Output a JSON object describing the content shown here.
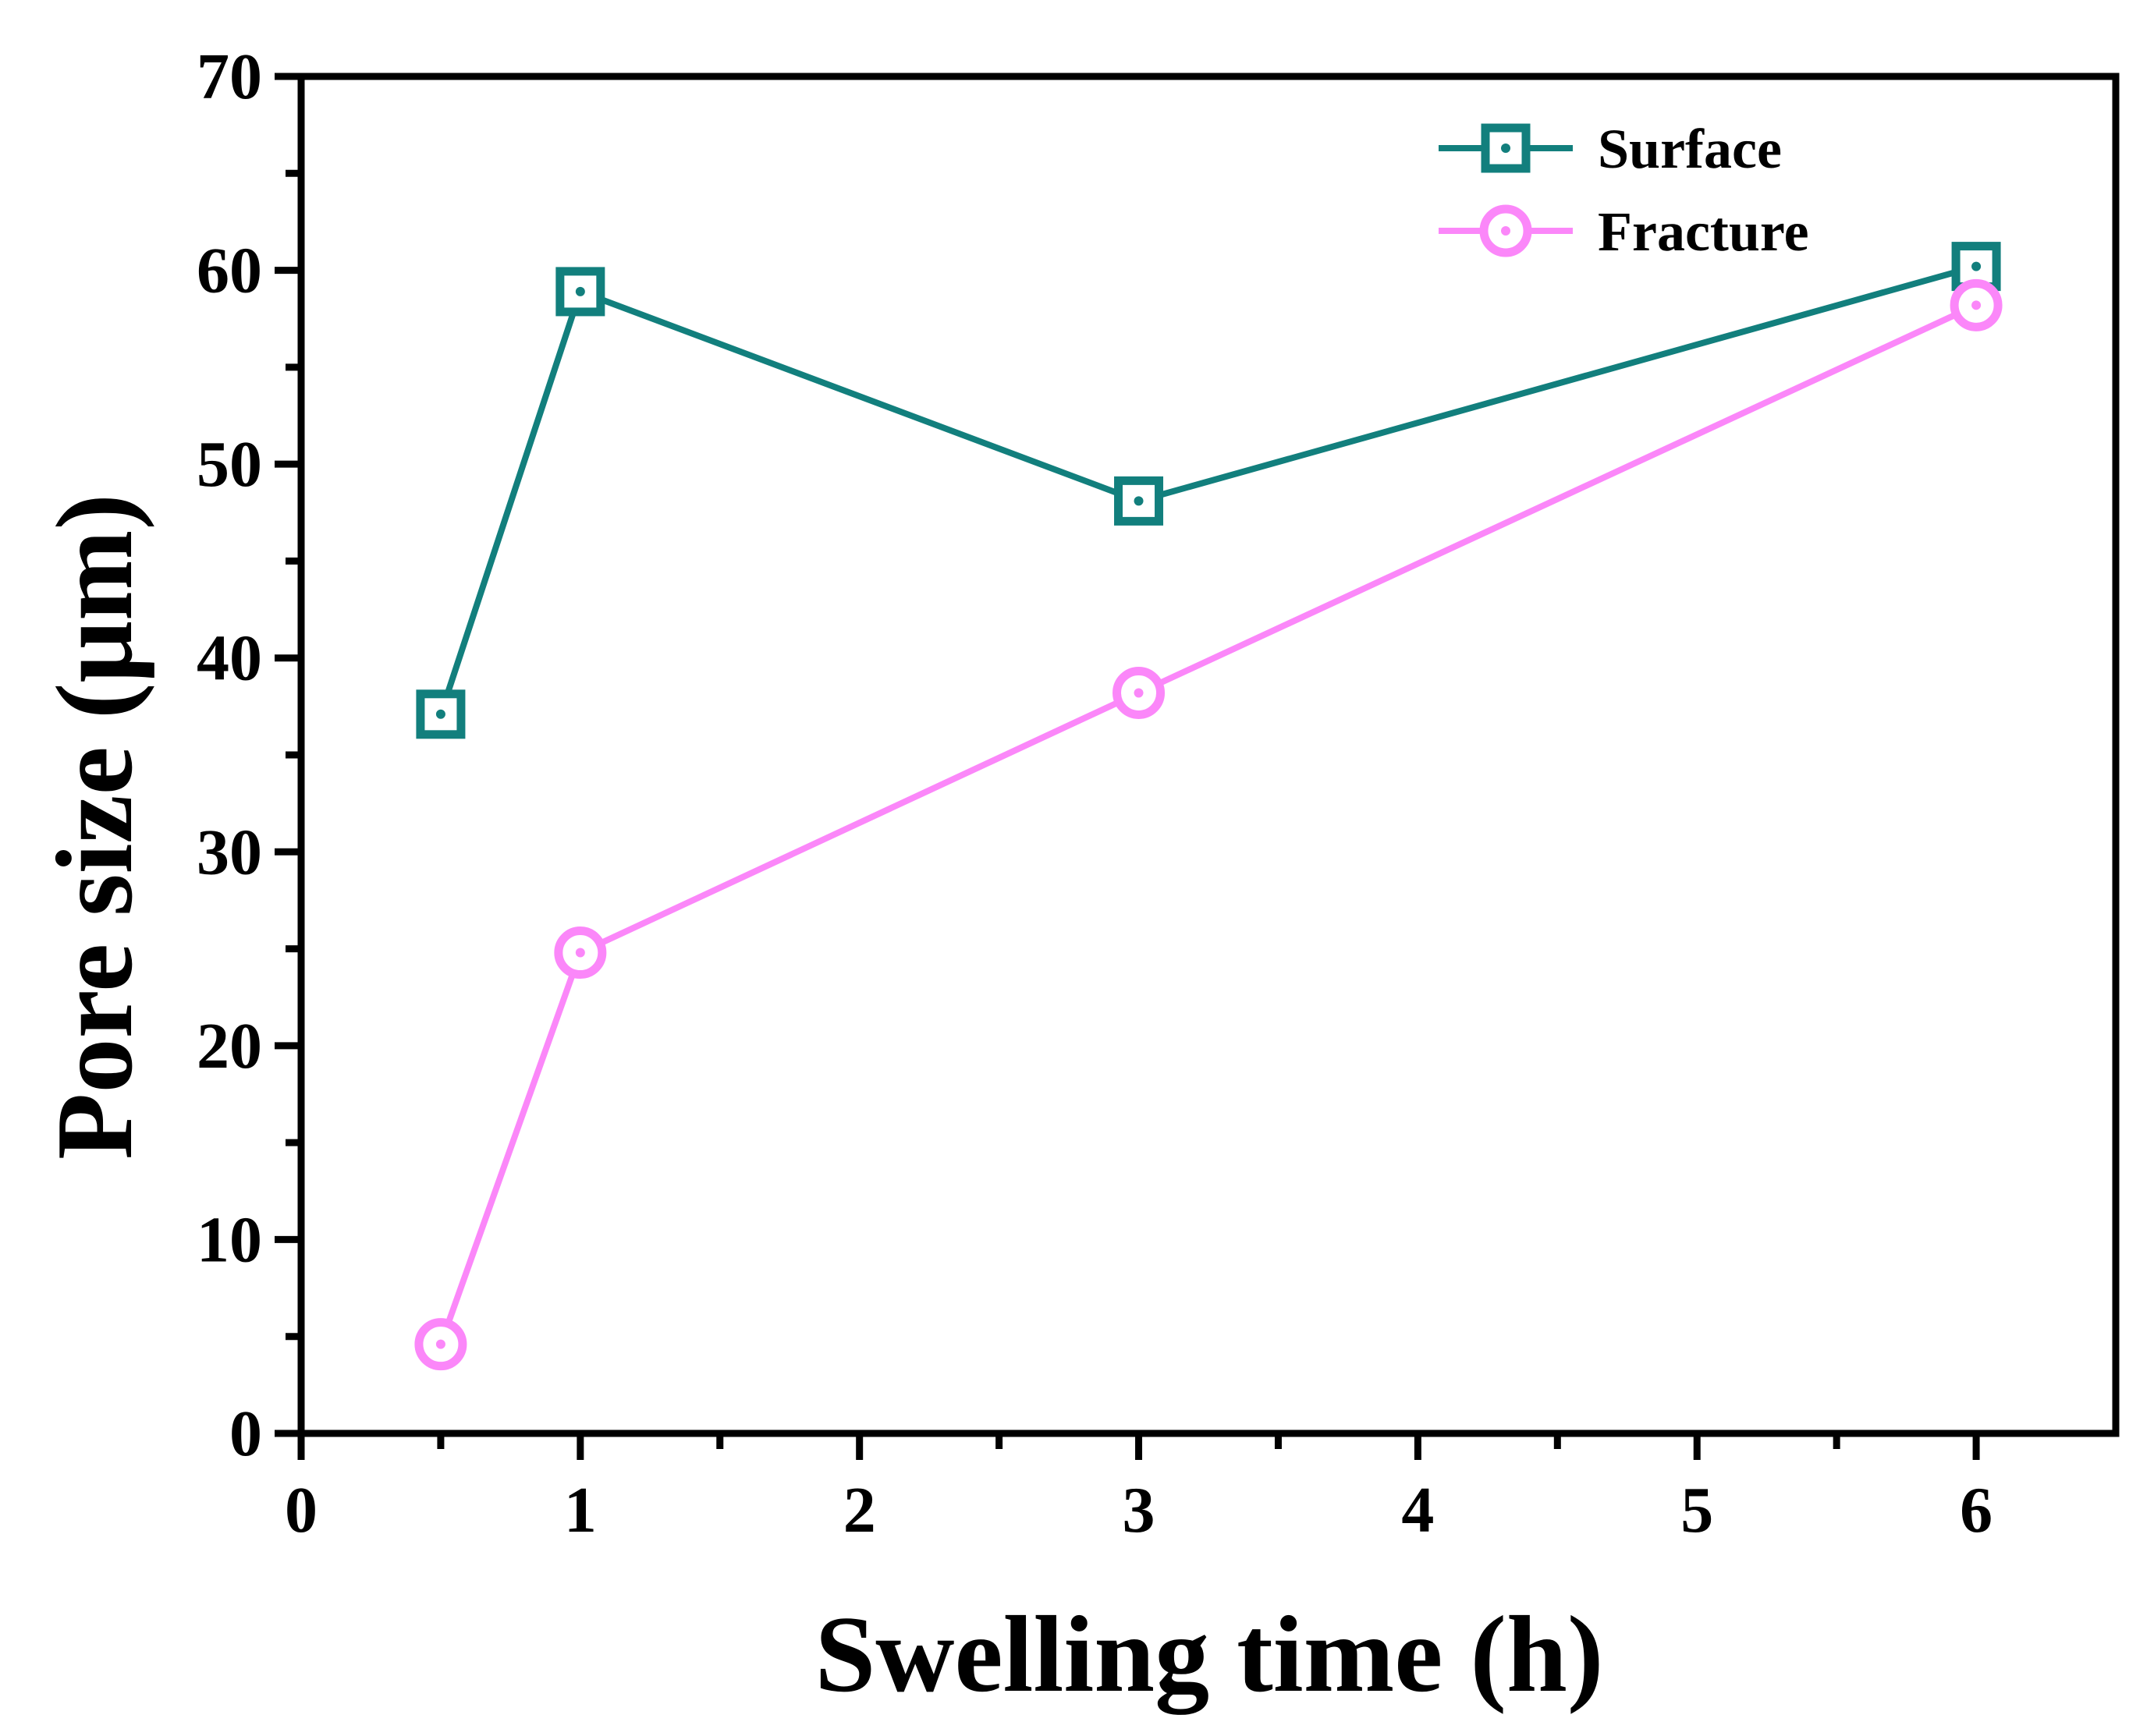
{
  "chart_data": {
    "type": "line",
    "title": "",
    "xlabel": "Swelling time (h)",
    "ylabel": "Pore size (μm)",
    "xlim": [
      0,
      6.5
    ],
    "ylim": [
      0,
      70
    ],
    "xticks": [
      0,
      1,
      2,
      3,
      4,
      5,
      6
    ],
    "yticks": [
      0,
      10,
      20,
      30,
      40,
      50,
      60,
      70
    ],
    "xtick_labels": [
      "0",
      "1",
      "2",
      "3",
      "4",
      "5",
      "6"
    ],
    "ytick_labels": [
      "0",
      "10",
      "20",
      "30",
      "40",
      "50",
      "60",
      "70"
    ],
    "x_minor_step": 0.5,
    "y_minor_step": 5,
    "grid": false,
    "legend_position": "top-right",
    "series": [
      {
        "name": "Surface",
        "marker": "square",
        "color": "#127f7d",
        "x": [
          0.5,
          1,
          3,
          6
        ],
        "values": [
          37.1,
          58.9,
          48.1,
          60.2
        ]
      },
      {
        "name": "Fracture",
        "marker": "circle",
        "color": "#fb87f9",
        "x": [
          0.5,
          1,
          3,
          6
        ],
        "values": [
          4.6,
          24.8,
          38.2,
          58.2
        ]
      }
    ]
  }
}
